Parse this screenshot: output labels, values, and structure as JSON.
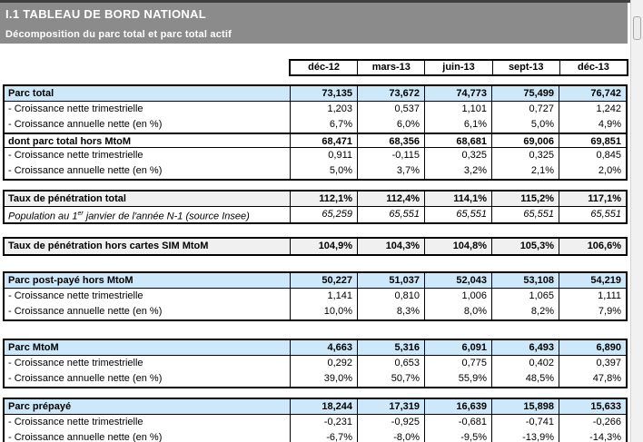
{
  "header": {
    "title": "I.1 TABLEAU DE BORD NATIONAL",
    "subtitle": "Décomposition du parc total et parc total actif"
  },
  "columns": [
    "déc-12",
    "mars-13",
    "juin-13",
    "sept-13",
    "déc-13"
  ],
  "table": {
    "blocks": [
      {
        "rows": [
          {
            "label": "Parc total",
            "style": "section-blue",
            "values": [
              "73,135",
              "73,672",
              "74,773",
              "75,499",
              "76,742"
            ]
          },
          {
            "label": "- Croissance nette trimestrielle",
            "style": "plain",
            "values": [
              "1,203",
              "0,537",
              "1,101",
              "0,727",
              "1,242"
            ]
          },
          {
            "label": "- Croissance annuelle nette (en %)",
            "style": "plain",
            "values": [
              "6,7%",
              "6,0%",
              "6,1%",
              "5,0%",
              "4,9%"
            ]
          },
          {
            "label": "dont parc total hors MtoM",
            "style": "subheader",
            "values": [
              "68,471",
              "68,356",
              "68,681",
              "69,006",
              "69,851"
            ]
          },
          {
            "label": "- Croissance nette trimestrielle",
            "style": "plain",
            "values": [
              "0,911",
              "-0,115",
              "0,325",
              "0,325",
              "0,845"
            ]
          },
          {
            "label": "- Croissance annuelle nette (en %)",
            "style": "plain",
            "values": [
              "5,0%",
              "3,7%",
              "3,2%",
              "2,1%",
              "2,0%"
            ]
          }
        ]
      },
      {
        "rows": [
          {
            "label": "Taux de pénétration total",
            "style": "section-gray",
            "values": [
              "112,1%",
              "112,4%",
              "114,1%",
              "115,2%",
              "117,1%"
            ]
          },
          {
            "label_parts": [
              {
                "t": "Population au 1"
              },
              {
                "t": "er",
                "sup": true
              },
              {
                "t": " janvier de l'année N-1 (source Insee)"
              }
            ],
            "style": "italic",
            "values": [
              "65,259",
              "65,551",
              "65,551",
              "65,551",
              "65,551"
            ]
          }
        ]
      },
      {
        "rows": [
          {
            "label": "Taux de pénétration hors cartes SIM MtoM",
            "style": "section-gray",
            "values": [
              "104,9%",
              "104,3%",
              "104,8%",
              "105,3%",
              "106,6%"
            ]
          }
        ]
      },
      {
        "rows": [
          {
            "label": "Parc post-payé hors MtoM",
            "style": "section-blue",
            "values": [
              "50,227",
              "51,037",
              "52,043",
              "53,108",
              "54,219"
            ]
          },
          {
            "label": "- Croissance nette trimestrielle",
            "style": "plain",
            "values": [
              "1,141",
              "0,810",
              "1,006",
              "1,065",
              "1,111"
            ]
          },
          {
            "label": "- Croissance annuelle nette (en %)",
            "style": "plain",
            "values": [
              "10,0%",
              "8,3%",
              "8,0%",
              "8,2%",
              "7,9%"
            ]
          }
        ]
      },
      {
        "rows": [
          {
            "label": "Parc MtoM",
            "style": "section-blue",
            "values": [
              "4,663",
              "5,316",
              "6,091",
              "6,493",
              "6,890"
            ]
          },
          {
            "label": "- Croissance nette trimestrielle",
            "style": "plain",
            "values": [
              "0,292",
              "0,653",
              "0,775",
              "0,402",
              "0,397"
            ]
          },
          {
            "label": "- Croissance annuelle nette (en %)",
            "style": "plain",
            "values": [
              "39,0%",
              "50,7%",
              "55,9%",
              "48,5%",
              "47,8%"
            ]
          }
        ]
      },
      {
        "rows": [
          {
            "label": "Parc prépayé",
            "style": "section-blue",
            "values": [
              "18,244",
              "17,319",
              "16,639",
              "15,898",
              "15,633"
            ]
          },
          {
            "label": "- Croissance nette trimestrielle",
            "style": "plain",
            "values": [
              "-0,231",
              "-0,925",
              "-0,681",
              "-0,741",
              "-0,266"
            ]
          },
          {
            "label": "- Croissance annuelle nette (en %)",
            "style": "plain",
            "values": [
              "-6,7%",
              "-8,0%",
              "-9,5%",
              "-13,9%",
              "-14,3%"
            ]
          }
        ]
      }
    ]
  },
  "colors": {
    "band_gray": "#8b8b8b",
    "section_blue": "#cde8f8",
    "section_gray": "#f0f0f0",
    "border_black": "#000000"
  }
}
